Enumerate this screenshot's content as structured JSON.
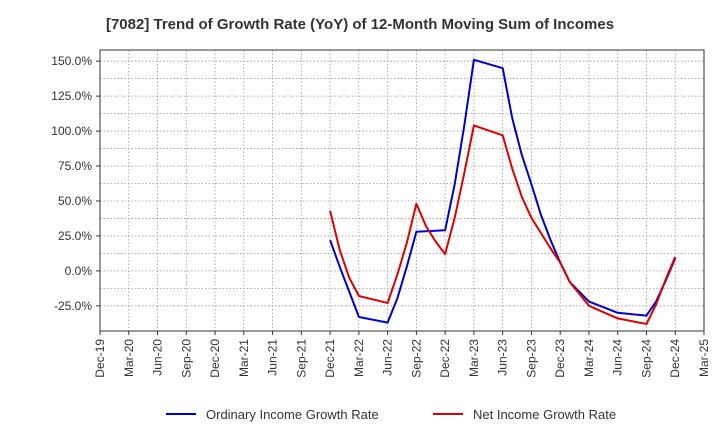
{
  "chart_data": {
    "type": "line",
    "title": "[7082]  Trend of Growth Rate (YoY) of 12-Month Moving Sum of Incomes",
    "xlabel": "",
    "ylabel": "",
    "x_ticks": [
      "Dec-19",
      "Mar-20",
      "Jun-20",
      "Sep-20",
      "Dec-20",
      "Mar-21",
      "Jun-21",
      "Sep-21",
      "Dec-21",
      "Mar-22",
      "Jun-22",
      "Sep-22",
      "Dec-22",
      "Mar-23",
      "Jun-23",
      "Sep-23",
      "Dec-23",
      "Mar-24",
      "Jun-24",
      "Sep-24",
      "Dec-24",
      "Mar-25"
    ],
    "y_ticks": [
      "150.0%",
      "125.0%",
      "100.0%",
      "75.0%",
      "50.0%",
      "25.0%",
      "0.0%",
      "-25.0%"
    ],
    "y_tick_values": [
      150,
      125,
      100,
      75,
      50,
      25,
      0,
      -25
    ],
    "ylim": [
      -43,
      158
    ],
    "grid": true,
    "legend_position": "bottom",
    "series": [
      {
        "name": "Ordinary Income Growth Rate",
        "color": "#0000cc",
        "points": [
          [
            "Dec-21",
            22
          ],
          [
            "Jan-22",
            3
          ],
          [
            "Feb-22",
            -15
          ],
          [
            "Mar-22",
            -33
          ],
          [
            "Jun-22",
            -37
          ],
          [
            "Jul-22",
            -20
          ],
          [
            "Aug-22",
            3
          ],
          [
            "Sep-22",
            28
          ],
          [
            "Dec-22",
            29
          ],
          [
            "Jan-23",
            62
          ],
          [
            "Feb-23",
            104
          ],
          [
            "Mar-23",
            151
          ],
          [
            "Jun-23",
            145
          ],
          [
            "Jul-23",
            109
          ],
          [
            "Aug-23",
            83
          ],
          [
            "Sep-23",
            62
          ],
          [
            "Oct-23",
            40
          ],
          [
            "Nov-23",
            22
          ],
          [
            "Dec-23",
            6
          ],
          [
            "Jan-24",
            -8
          ],
          [
            "Mar-24",
            -22
          ],
          [
            "Jun-24",
            -30
          ],
          [
            "Sep-24",
            -32
          ],
          [
            "Oct-24",
            -22
          ],
          [
            "Nov-24",
            -7
          ],
          [
            "Dec-24",
            9
          ]
        ]
      },
      {
        "name": "Net Income Growth Rate",
        "color": "#dd0000",
        "points": [
          [
            "Dec-21",
            43
          ],
          [
            "Jan-22",
            15
          ],
          [
            "Feb-22",
            -5
          ],
          [
            "Mar-22",
            -18
          ],
          [
            "Jun-22",
            -23
          ],
          [
            "Jul-22",
            -3
          ],
          [
            "Aug-22",
            20
          ],
          [
            "Sep-22",
            48
          ],
          [
            "Oct-22",
            32
          ],
          [
            "Nov-22",
            21
          ],
          [
            "Dec-22",
            12
          ],
          [
            "Jan-23",
            38
          ],
          [
            "Feb-23",
            70
          ],
          [
            "Mar-23",
            104
          ],
          [
            "Jun-23",
            97
          ],
          [
            "Jul-23",
            73
          ],
          [
            "Aug-23",
            53
          ],
          [
            "Sep-23",
            38
          ],
          [
            "Oct-23",
            27
          ],
          [
            "Nov-23",
            16
          ],
          [
            "Dec-23",
            6
          ],
          [
            "Jan-24",
            -8
          ],
          [
            "Mar-24",
            -25
          ],
          [
            "Jun-24",
            -34
          ],
          [
            "Sep-24",
            -38
          ],
          [
            "Oct-24",
            -24
          ],
          [
            "Nov-24",
            -6
          ],
          [
            "Dec-24",
            10
          ]
        ]
      }
    ]
  }
}
